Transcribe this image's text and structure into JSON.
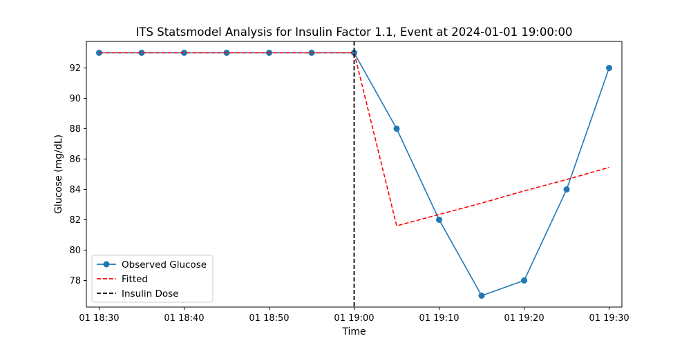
{
  "chart_data": {
    "type": "line",
    "title": "ITS Statsmodel Analysis for Insulin Factor 1.1, Event at 2024-01-01 19:00:00",
    "xlabel": "Time",
    "ylabel": "Glucose (mg/dL)",
    "x": [
      "2024-01-01 18:30",
      "2024-01-01 18:35",
      "2024-01-01 18:40",
      "2024-01-01 18:45",
      "2024-01-01 18:50",
      "2024-01-01 18:55",
      "2024-01-01 19:00",
      "2024-01-01 19:05",
      "2024-01-01 19:10",
      "2024-01-01 19:15",
      "2024-01-01 19:20",
      "2024-01-01 19:25",
      "2024-01-01 19:30"
    ],
    "xlim": [
      "2024-01-01 18:28:30",
      "2024-01-01 19:31:30"
    ],
    "ylim": [
      76.25,
      93.75
    ],
    "xticks": [
      "01 18:30",
      "01 18:40",
      "01 18:50",
      "01 19:00",
      "01 19:10",
      "01 19:20",
      "01 19:30"
    ],
    "yticks": [
      78,
      80,
      82,
      84,
      86,
      88,
      90,
      92
    ],
    "series": [
      {
        "name": "Observed Glucose",
        "style": "solid-marker",
        "color": "#1f77b4",
        "values": [
          93,
          93,
          93,
          93,
          93,
          93,
          93,
          88,
          82,
          77,
          78,
          84,
          92
        ]
      },
      {
        "name": "Fitted",
        "style": "dashed",
        "color": "#ff0000",
        "values": [
          93,
          93,
          93,
          93,
          93,
          93,
          93,
          81.6,
          82.35,
          83.1,
          83.9,
          84.65,
          85.45
        ]
      }
    ],
    "event": {
      "name": "Insulin Dose",
      "x": "2024-01-01 19:00",
      "style": "dashed",
      "color": "#000000"
    },
    "legend_position": "lower-left",
    "grid": false
  }
}
